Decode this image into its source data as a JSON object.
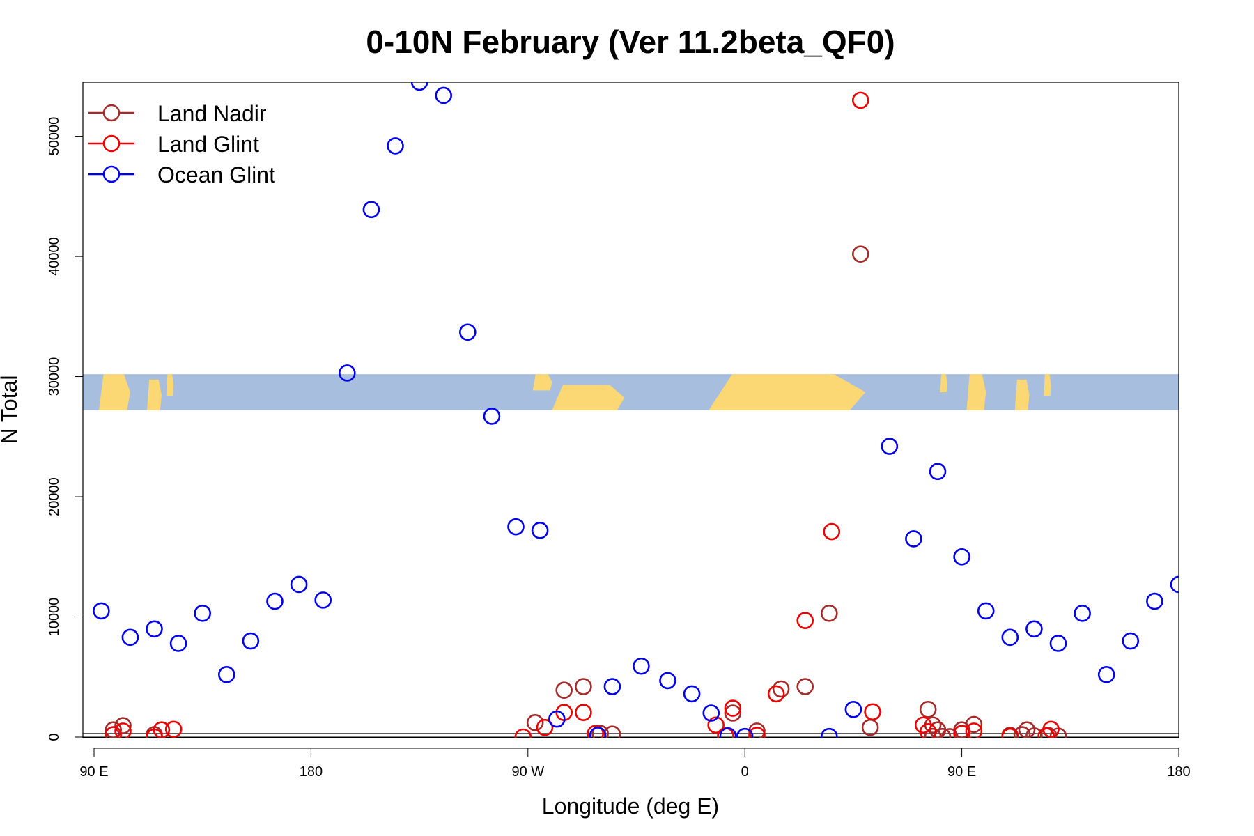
{
  "chart_data": {
    "type": "scatter",
    "title": "0-10N February (Ver 11.2beta_QF0)",
    "xlabel": "Longitude (deg E)",
    "ylabel": "N Total",
    "xlim": [
      0,
      450
    ],
    "ylim": [
      0,
      54500
    ],
    "x_ticks": [
      {
        "value": 0,
        "label": "90 E"
      },
      {
        "value": 90,
        "label": "180"
      },
      {
        "value": 180,
        "label": "90 W"
      },
      {
        "value": 270,
        "label": "0"
      },
      {
        "value": 360,
        "label": "90 E"
      },
      {
        "value": 450,
        "label": "180"
      }
    ],
    "y_ticks": [
      {
        "value": 0,
        "label": "0"
      },
      {
        "value": 10000,
        "label": "10000"
      },
      {
        "value": 20000,
        "label": "20000"
      },
      {
        "value": 30000,
        "label": "30000"
      },
      {
        "value": 40000,
        "label": "40000"
      },
      {
        "value": 50000,
        "label": "50000"
      }
    ],
    "legend_position": "top-left",
    "map_band": {
      "description": "latitude 0-10N map strip",
      "y_range": [
        27200,
        30200
      ],
      "ocean_color": "#a8bede",
      "land_color": "#fcd874"
    },
    "series": [
      {
        "name": "Land Nadir",
        "color": "#a52a2a",
        "points": [
          [
            8,
            600
          ],
          [
            12,
            950
          ],
          [
            25,
            200
          ],
          [
            183,
            1200
          ],
          [
            195,
            3900
          ],
          [
            203,
            4200
          ],
          [
            210,
            300
          ],
          [
            215,
            250
          ],
          [
            265,
            2000
          ],
          [
            275,
            500
          ],
          [
            285,
            4000
          ],
          [
            295,
            4200
          ],
          [
            305,
            10300
          ],
          [
            318,
            40200
          ],
          [
            322,
            800
          ],
          [
            360,
            600
          ],
          [
            365,
            1050
          ],
          [
            380,
            150
          ],
          [
            385,
            200
          ],
          [
            387,
            600
          ],
          [
            390,
            100
          ],
          [
            396,
            120
          ],
          [
            400,
            80
          ],
          [
            348,
            50
          ],
          [
            352,
            40
          ],
          [
            355,
            30
          ],
          [
            346,
            2300
          ],
          [
            348,
            1000
          ],
          [
            350,
            600
          ]
        ]
      },
      {
        "name": "Land Glint",
        "color": "#ee0000",
        "points": [
          [
            8,
            200
          ],
          [
            12,
            500
          ],
          [
            25,
            0
          ],
          [
            28,
            600
          ],
          [
            33,
            650
          ],
          [
            178,
            0
          ],
          [
            187,
            800
          ],
          [
            195,
            2050
          ],
          [
            203,
            2050
          ],
          [
            208,
            300
          ],
          [
            258,
            1000
          ],
          [
            262,
            100
          ],
          [
            265,
            2400
          ],
          [
            275,
            150
          ],
          [
            283,
            3600
          ],
          [
            295,
            9700
          ],
          [
            306,
            17100
          ],
          [
            318,
            53000
          ],
          [
            323,
            2100
          ],
          [
            344,
            1000
          ],
          [
            346,
            450
          ],
          [
            360,
            300
          ],
          [
            365,
            500
          ],
          [
            380,
            50
          ],
          [
            395,
            100
          ],
          [
            397,
            650
          ]
        ]
      },
      {
        "name": "Ocean Glint",
        "color": "#0000ee",
        "points": [
          [
            3,
            10500
          ],
          [
            15,
            8300
          ],
          [
            25,
            9000
          ],
          [
            35,
            7800
          ],
          [
            45,
            10300
          ],
          [
            55,
            5200
          ],
          [
            65,
            8000
          ],
          [
            75,
            11300
          ],
          [
            85,
            12700
          ],
          [
            95,
            11400
          ],
          [
            105,
            30300
          ],
          [
            115,
            43900
          ],
          [
            125,
            49200
          ],
          [
            135,
            54500
          ],
          [
            145,
            53400
          ],
          [
            155,
            33700
          ],
          [
            165,
            26700
          ],
          [
            175,
            17500
          ],
          [
            185,
            17200
          ],
          [
            192,
            1500
          ],
          [
            209,
            150
          ],
          [
            215,
            4200
          ],
          [
            227,
            5900
          ],
          [
            238,
            4700
          ],
          [
            248,
            3600
          ],
          [
            256,
            2000
          ],
          [
            263,
            100
          ],
          [
            270,
            50
          ],
          [
            305,
            50
          ],
          [
            315,
            2300
          ],
          [
            330,
            24200
          ],
          [
            340,
            16500
          ],
          [
            350,
            22100
          ],
          [
            360,
            15000
          ],
          [
            370,
            10500
          ],
          [
            380,
            8300
          ],
          [
            390,
            9000
          ],
          [
            400,
            7800
          ],
          [
            410,
            10300
          ],
          [
            420,
            5200
          ],
          [
            430,
            8000
          ],
          [
            440,
            11300
          ],
          [
            450,
            12700
          ]
        ]
      }
    ]
  }
}
